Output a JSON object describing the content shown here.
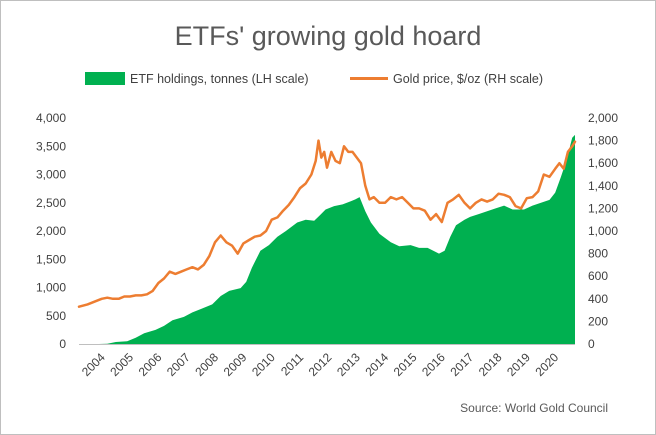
{
  "chart_data": {
    "type": "area+line",
    "title": "ETFs' growing gold hoard",
    "source": "Source: World Gold Council",
    "legend": {
      "position": "top",
      "etf_label": "ETF holdings, tonnes (LH scale)",
      "gold_label": "Gold price, $/oz (RH scale)"
    },
    "colors": {
      "etf": "#00b050",
      "gold": "#ed7d31",
      "text": "#404040"
    },
    "left_axis": {
      "ylim": [
        0,
        4000
      ],
      "ticks": [
        0,
        500,
        1000,
        1500,
        2000,
        2500,
        3000,
        3500,
        4000
      ],
      "tick_labels": [
        "0",
        "500",
        "1,000",
        "1,500",
        "2,000",
        "2,500",
        "3,000",
        "3,500",
        "4,000"
      ]
    },
    "right_axis": {
      "ylim": [
        0,
        2000
      ],
      "ticks": [
        0,
        200,
        400,
        600,
        800,
        1000,
        1200,
        1400,
        1600,
        1800,
        2000
      ],
      "tick_labels": [
        "0",
        "200",
        "400",
        "600",
        "800",
        "1,000",
        "1,200",
        "1,400",
        "1,600",
        "1,800",
        "2,000"
      ]
    },
    "x_axis": {
      "xlim": [
        2003.2,
        2020.7
      ],
      "ticks": [
        2004,
        2005,
        2006,
        2007,
        2008,
        2009,
        2010,
        2011,
        2012,
        2013,
        2014,
        2015,
        2016,
        2017,
        2018,
        2019,
        2020
      ],
      "tick_labels": [
        "2004",
        "2005",
        "2006",
        "2007",
        "2008",
        "2009",
        "2010",
        "2011",
        "2012",
        "2013",
        "2014",
        "2015",
        "2016",
        "2017",
        "2018",
        "2019",
        "2020"
      ]
    },
    "etf_holdings": {
      "name": "ETF holdings, tonnes (LH scale)",
      "x": [
        2003.2,
        2003.5,
        2003.9,
        2004.2,
        2004.5,
        2004.9,
        2005.2,
        2005.5,
        2005.9,
        2006.2,
        2006.5,
        2006.9,
        2007.2,
        2007.5,
        2007.9,
        2008.2,
        2008.5,
        2008.9,
        2009.1,
        2009.3,
        2009.6,
        2009.9,
        2010.2,
        2010.5,
        2010.9,
        2011.2,
        2011.5,
        2011.7,
        2011.9,
        2012.2,
        2012.5,
        2012.8,
        2012.95,
        2013.1,
        2013.3,
        2013.5,
        2013.8,
        2014.2,
        2014.5,
        2014.9,
        2015.2,
        2015.5,
        2015.9,
        2016.1,
        2016.3,
        2016.5,
        2016.8,
        2017.0,
        2017.3,
        2017.6,
        2017.9,
        2018.2,
        2018.5,
        2018.9,
        2019.2,
        2019.5,
        2019.8,
        2020.0,
        2020.2,
        2020.4,
        2020.6,
        2020.7
      ],
      "values": [
        0,
        0,
        0,
        5,
        35,
        50,
        110,
        190,
        250,
        320,
        420,
        480,
        560,
        620,
        700,
        850,
        940,
        990,
        1100,
        1350,
        1650,
        1750,
        1900,
        2000,
        2150,
        2200,
        2180,
        2280,
        2380,
        2440,
        2470,
        2530,
        2560,
        2600,
        2350,
        2150,
        1950,
        1800,
        1730,
        1750,
        1700,
        1700,
        1600,
        1650,
        1900,
        2100,
        2200,
        2250,
        2300,
        2350,
        2400,
        2450,
        2380,
        2380,
        2450,
        2500,
        2550,
        2680,
        2950,
        3250,
        3650,
        3700
      ]
    },
    "gold_price": {
      "name": "Gold price, $/oz (RH scale)",
      "x": [
        2003.2,
        2003.5,
        2003.8,
        2004.0,
        2004.2,
        2004.4,
        2004.6,
        2004.8,
        2005.0,
        2005.2,
        2005.4,
        2005.6,
        2005.8,
        2006.0,
        2006.2,
        2006.4,
        2006.6,
        2006.8,
        2007.0,
        2007.2,
        2007.4,
        2007.6,
        2007.8,
        2008.0,
        2008.2,
        2008.4,
        2008.6,
        2008.8,
        2009.0,
        2009.2,
        2009.4,
        2009.6,
        2009.8,
        2010.0,
        2010.2,
        2010.4,
        2010.6,
        2010.8,
        2011.0,
        2011.2,
        2011.4,
        2011.55,
        2011.65,
        2011.75,
        2011.85,
        2011.95,
        2012.1,
        2012.25,
        2012.4,
        2012.55,
        2012.7,
        2012.85,
        2013.0,
        2013.15,
        2013.3,
        2013.45,
        2013.6,
        2013.8,
        2014.0,
        2014.2,
        2014.4,
        2014.6,
        2014.8,
        2015.0,
        2015.2,
        2015.4,
        2015.6,
        2015.8,
        2016.0,
        2016.2,
        2016.4,
        2016.6,
        2016.8,
        2017.0,
        2017.2,
        2017.4,
        2017.6,
        2017.8,
        2018.0,
        2018.2,
        2018.4,
        2018.6,
        2018.8,
        2019.0,
        2019.2,
        2019.4,
        2019.6,
        2019.8,
        2020.0,
        2020.15,
        2020.3,
        2020.45,
        2020.6,
        2020.7
      ],
      "values": [
        330,
        350,
        380,
        400,
        410,
        400,
        400,
        420,
        420,
        430,
        430,
        440,
        470,
        540,
        580,
        640,
        620,
        640,
        660,
        680,
        660,
        700,
        780,
        900,
        960,
        900,
        870,
        800,
        890,
        920,
        950,
        960,
        1000,
        1100,
        1120,
        1180,
        1230,
        1300,
        1380,
        1420,
        1500,
        1620,
        1800,
        1650,
        1700,
        1560,
        1700,
        1620,
        1600,
        1750,
        1700,
        1700,
        1650,
        1600,
        1400,
        1280,
        1300,
        1250,
        1250,
        1300,
        1280,
        1300,
        1250,
        1200,
        1200,
        1180,
        1100,
        1150,
        1080,
        1250,
        1280,
        1320,
        1250,
        1200,
        1250,
        1280,
        1260,
        1280,
        1330,
        1320,
        1300,
        1220,
        1200,
        1290,
        1300,
        1350,
        1500,
        1480,
        1550,
        1600,
        1550,
        1700,
        1750,
        1790
      ]
    }
  }
}
